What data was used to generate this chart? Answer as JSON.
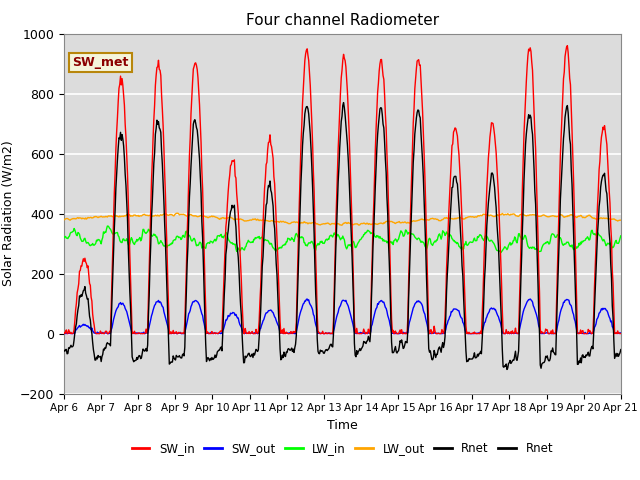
{
  "title": "Four channel Radiometer",
  "xlabel": "Time",
  "ylabel": "Solar Radiation (W/m2)",
  "ylim": [
    -200,
    1000
  ],
  "xlim_days": [
    6,
    21
  ],
  "xtick_labels": [
    "Apr 6",
    "Apr 7",
    "Apr 8",
    "Apr 9",
    "Apr 10",
    "Apr 11",
    "Apr 12",
    "Apr 13",
    "Apr 14",
    "Apr 15",
    "Apr 16",
    "Apr 17",
    "Apr 18",
    "Apr 19",
    "Apr 20",
    "Apr 21"
  ],
  "annotation_text": "SW_met",
  "annotation_color": "#8B0000",
  "annotation_bg": "#F5F5DC",
  "annotation_border": "#B8860B",
  "bg_color": "#DCDCDC",
  "grid_color": "white",
  "SW_in_color": "red",
  "SW_out_color": "blue",
  "LW_in_color": "#00FF00",
  "LW_out_color": "orange",
  "Rnet_color": "black",
  "line_width": 1.0,
  "seed": 42,
  "yticks": [
    -200,
    0,
    200,
    400,
    600,
    800,
    1000
  ],
  "sw_peaks": [
    250,
    850,
    900,
    910,
    580,
    650,
    940,
    920,
    910,
    920,
    690,
    700,
    950,
    950,
    690
  ],
  "sw_out_scale": 0.12,
  "lw_in_base": 310,
  "lw_out_base": 380,
  "rnet_night": -90
}
